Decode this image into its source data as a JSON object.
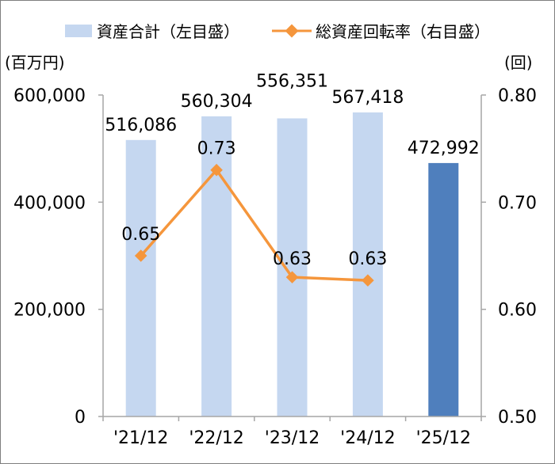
{
  "chart_data": {
    "type": "bar+line",
    "categories": [
      "'21/12",
      "'22/12",
      "'23/12",
      "'24/12",
      "'25/12"
    ],
    "series": [
      {
        "name": "資産合計（左目盛）",
        "type": "bar",
        "axis": "left",
        "values": [
          516086,
          560304,
          556351,
          567418,
          472992
        ],
        "value_labels": [
          "516,086",
          "560,304",
          "556,351",
          "567,418",
          "472,992"
        ],
        "colors": [
          "#c5d7f0",
          "#c5d7f0",
          "#c5d7f0",
          "#c5d7f0",
          "#4f7fbd"
        ]
      },
      {
        "name": "総資産回転率（右目盛）",
        "type": "line",
        "axis": "right",
        "values": [
          0.65,
          0.73,
          0.63,
          0.627,
          null
        ],
        "value_labels": [
          "0.65",
          "0.73",
          "0.63",
          "0.63"
        ],
        "color": "#f5963c"
      }
    ],
    "y_left": {
      "unit": "(百万円)",
      "min": 0,
      "max": 600000,
      "ticks": [
        0,
        200000,
        400000,
        600000
      ],
      "tick_labels": [
        "0",
        "200,000",
        "400,000",
        "600,000"
      ]
    },
    "y_right": {
      "unit": "(回)",
      "min": 0.5,
      "max": 0.8,
      "ticks": [
        0.5,
        0.6,
        0.7,
        0.8
      ],
      "tick_labels": [
        "0.50",
        "0.60",
        "0.70",
        "0.80"
      ]
    },
    "grid": false,
    "legend_position": "top"
  },
  "colors": {
    "axis": "#a6a6a6",
    "bar_light": "#c5d7f0",
    "bar_dark": "#4f7fbd",
    "line": "#f5963c"
  }
}
